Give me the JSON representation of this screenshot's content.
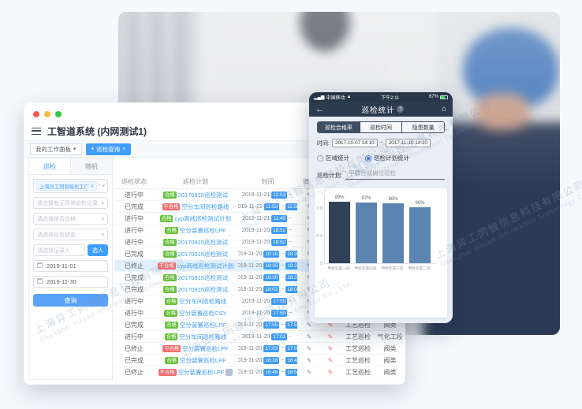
{
  "page": {
    "watermark": {
      "cn": "上海异工同智信息科技有限公司",
      "en": "Shanghai Inroad Information Technology Co., Ltd."
    }
  },
  "icons": {
    "close": "×",
    "caret": "▾",
    "dot": "●",
    "back": "←",
    "home": "⌂",
    "help": "?",
    "pen": "✎",
    "tilde": "~",
    "signal": "▂▄▆",
    "wifi": "▲"
  },
  "colors": {
    "accent": "#409eff",
    "pass_green": "#67c23a",
    "fail_red": "#f56c6c",
    "phone_navy": "#2d3b4f",
    "bar_dark": "#2f4258",
    "bar_blue": "#5b84b0",
    "traffic_close": "#fc5753",
    "traffic_min": "#fdbc40",
    "traffic_max": "#33c748"
  },
  "window": {
    "title": "工智道系统 (内网测试1)",
    "tabs": [
      {
        "label": "我的工作面板",
        "active": false
      },
      {
        "label": "巡检查询",
        "active": true
      }
    ],
    "sidebar": {
      "tabs": [
        {
          "label": "巡检",
          "active": true
        },
        {
          "label": "随机",
          "active": false
        }
      ],
      "org_tag": "上海异工同智能化工厂",
      "filters": [
        "请选择有无异常巡检记录",
        "请选择是否合格",
        "请选择巡检状态"
      ],
      "recorder_placeholder": "请选择记录人",
      "pick_button": "选人",
      "date_start": "2019-11-01",
      "date_end": "2019-11-30",
      "search_button": "查询"
    },
    "table": {
      "columns": [
        "巡检状态",
        "巡检计划",
        "时间",
        "填写",
        "",
        "",
        ""
      ],
      "rows": [
        {
          "status": "进行中",
          "result": "合格",
          "plan": "20170915巡检测试",
          "date": "2019-11-21",
          "start": "12:03",
          "end": "",
          "type": "",
          "area": "",
          "highlight": false,
          "extra": false
        },
        {
          "status": "已完成",
          "result": "不合格",
          "plan": "空分车间巡检路线",
          "date": "2019-11-21",
          "start": "11:53",
          "end": "11:58",
          "type": "",
          "area": "",
          "highlight": false,
          "extra": false
        },
        {
          "status": "进行中",
          "result": "合格",
          "plan": "cyp高线巡检测试计划",
          "date": "2019-11-21",
          "start": "11:49",
          "end": "",
          "type": "",
          "area": "",
          "highlight": false,
          "extra": false
        },
        {
          "status": "进行中",
          "result": "合格",
          "plan": "空分装置巡检LPF",
          "date": "2019-11-20",
          "start": "18:52",
          "end": "",
          "type": "",
          "area": "",
          "highlight": false,
          "extra": false
        },
        {
          "status": "进行中",
          "result": "合格",
          "plan": "20170915巡检测试",
          "date": "2019-11-20",
          "start": "18:52",
          "end": "",
          "type": "",
          "area": "",
          "highlight": false,
          "extra": false
        },
        {
          "status": "已完成",
          "result": "合格",
          "plan": "20170915巡检测试",
          "date": "2019-11-20",
          "start": "18:18",
          "end": "18:39",
          "type": "",
          "area": "",
          "highlight": false,
          "extra": false
        },
        {
          "status": "已终止",
          "result": "不合格",
          "plan": "cyp高线巡检测试计划",
          "date": "2019-11-20",
          "start": "18:35",
          "end": "18:37",
          "type": "",
          "area": "",
          "highlight": true,
          "extra": false
        },
        {
          "status": "已完成",
          "result": "合格",
          "plan": "20170915巡检测试",
          "date": "2019-11-20",
          "start": "18:30",
          "end": "18:31",
          "type": "",
          "area": "",
          "highlight": false,
          "extra": false
        },
        {
          "status": "已完成",
          "result": "合格",
          "plan": "20170915巡检测试",
          "date": "2019-11-20",
          "start": "18:02",
          "end": "18:06",
          "type": "",
          "area": "",
          "highlight": false,
          "extra": false
        },
        {
          "status": "进行中",
          "result": "合格",
          "plan": "空分车间巡检路线",
          "date": "2019-11-20",
          "start": "17:59",
          "end": "",
          "type": "",
          "area": "",
          "highlight": false,
          "extra": false
        },
        {
          "status": "进行中",
          "result": "合格",
          "plan": "空分装置巡检CSY",
          "date": "2019-11-20",
          "start": "17:59",
          "end": "",
          "type": "",
          "area": "",
          "highlight": false,
          "extra": false
        },
        {
          "status": "已完成",
          "result": "合格",
          "plan": "空分装置巡检LPF",
          "date": "2019-11-20",
          "start": "17:55",
          "end": "17:56",
          "type": "工艺巡检",
          "area": "阀类",
          "highlight": false,
          "extra": false
        },
        {
          "status": "进行中",
          "result": "合格",
          "plan": "空分车间巡检路线",
          "date": "2019-11-20",
          "start": "17:01",
          "end": "",
          "type": "工艺巡检",
          "area": "气化工段",
          "highlight": false,
          "extra": false
        },
        {
          "status": "已终止",
          "result": "不合格",
          "plan": "空分装置巡检LPF",
          "date": "2019-11-20",
          "start": "17:03",
          "end": "17:06",
          "type": "工艺巡检",
          "area": "阀类",
          "highlight": false,
          "extra": false
        },
        {
          "status": "已完成",
          "result": "合格",
          "plan": "空分装置巡检LPF",
          "date": "2019-11-20",
          "start": "16:38",
          "end": "16:41",
          "type": "工艺巡检",
          "area": "阀类",
          "highlight": false,
          "extra": false
        },
        {
          "status": "已终止",
          "result": "不合格",
          "plan": "空分装置巡检LPF",
          "date": "2019-11-20",
          "start": "16:48",
          "end": "16:55",
          "type": "工艺巡检",
          "area": "阀类",
          "highlight": false,
          "extra": true
        }
      ]
    }
  },
  "phone": {
    "status_bar": {
      "carrier": "中国移动",
      "time": "下午2:11",
      "battery": "67%"
    },
    "nav": {
      "title": "巡检统计"
    },
    "segments": [
      {
        "label": "巡检合格率",
        "active": true
      },
      {
        "label": "巡检时间",
        "active": false
      },
      {
        "label": "隐患数量",
        "active": false
      }
    ],
    "time_label": "时间:",
    "time_from": "2017-10-07 14:10",
    "time_to": "2017-11-10 14:10",
    "radios": [
      {
        "label": "区域统计",
        "selected": false
      },
      {
        "label": "巡检计划统计",
        "selected": true
      }
    ],
    "plan_label": "巡检计划:",
    "plan_value": "甲醇合成岗位巡检"
  },
  "chart_data": {
    "type": "bar",
    "categories": [
      "甲醇装置一班",
      "甲醇装置四班",
      "甲醇装置三班",
      "甲醇装置二班"
    ],
    "values": [
      99,
      97,
      96,
      90
    ],
    "labels": [
      "99%",
      "97%",
      "96%",
      "90%"
    ],
    "title": "",
    "xlabel": "",
    "ylabel": "",
    "ylim": [
      0,
      100
    ],
    "yticks": [
      "0.8",
      "0.4",
      "0"
    ],
    "grid": false,
    "legend": false,
    "bar_colors": [
      "#2f4258",
      "#5b84b0",
      "#5b84b0",
      "#5b84b0"
    ]
  }
}
